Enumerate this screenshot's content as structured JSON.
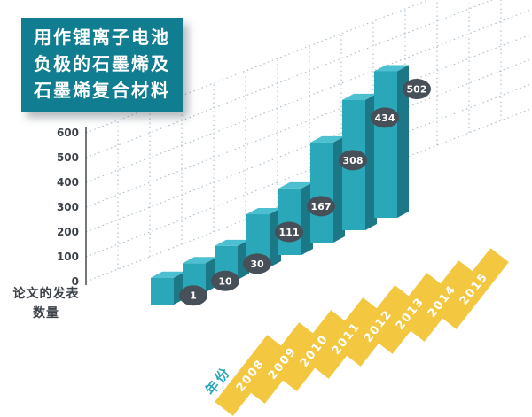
{
  "title": {
    "line1": "用作锂离子电池",
    "line2": "负极的石墨烯及",
    "line3": "石墨烯复合材料"
  },
  "axis_caption": {
    "line1": "论文的发表",
    "line2": "数量"
  },
  "x_axis_title": "年份",
  "colors": {
    "title_bg": "#117d90",
    "bar_front": "#2aa7b8",
    "bar_side": "#1c7787",
    "bar_top": "#4cc0d0",
    "bubble": "#474f58",
    "stripe": "#f3c73f",
    "grid": "#afc0cf",
    "axis_line": "#50565c",
    "axis_text": "#3c4248",
    "teal_label": "#2aa7b8"
  },
  "chart_data": {
    "type": "bar",
    "style": "3d-perspective",
    "title": "用作锂离子电池负极的石墨烯及石墨烯复合材料",
    "categories": [
      "2008",
      "2009",
      "2010",
      "2011",
      "2012",
      "2013",
      "2014",
      "2015"
    ],
    "values": [
      1,
      10,
      30,
      111,
      167,
      308,
      434,
      502
    ],
    "xlabel": "年份",
    "ylabel": "论文的发表数量",
    "ylim": [
      0,
      600
    ],
    "yticks": [
      0,
      100,
      200,
      300,
      400,
      500,
      600
    ],
    "grid": "dotted",
    "legend": "none",
    "data_labels": "bubble"
  }
}
